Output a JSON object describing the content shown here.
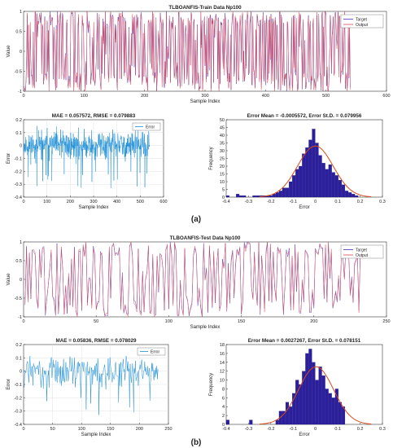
{
  "colors": {
    "target": "#4b2fbf",
    "output": "#e0444a",
    "error": "#1f8fd6",
    "hist_fill": "#2b1f9e",
    "fit": "#d94a1a"
  },
  "panels": [
    {
      "caption": "(a)",
      "top": {
        "title": "TLBOANFIS-Train Data Np100",
        "xlabel": "Sample Index",
        "ylabel": "Value",
        "legend": [
          "Target",
          "Output"
        ],
        "xlim": [
          0,
          600
        ],
        "ylim": [
          -1,
          1
        ],
        "xticks": [
          "0",
          "100",
          "200",
          "300",
          "400",
          "500",
          "600"
        ],
        "yticks": [
          "-1",
          "-0.5",
          "0",
          "0.5",
          "1"
        ],
        "n": 540,
        "seed": 7
      },
      "error": {
        "title": "MAE = 0.057572, RMSE = 0.079883",
        "xlabel": "Sample Index",
        "ylabel": "Error",
        "legend": [
          "Error"
        ],
        "xlim": [
          0,
          600
        ],
        "ylim": [
          -0.4,
          0.2
        ],
        "xticks": [
          "0",
          "100",
          "200",
          "300",
          "400",
          "500",
          "600"
        ],
        "yticks": [
          "-0.4",
          "-0.3",
          "-0.2",
          "-0.1",
          "0",
          "0.1",
          "0.2"
        ],
        "n": 540,
        "seed": 11
      },
      "hist": {
        "title": "Error Mean = -0.0005572, Error St.D. = 0.079956",
        "xlabel": "Error",
        "ylabel": "Frequency",
        "xlim": [
          -0.4,
          0.3
        ],
        "ylim": [
          0,
          50
        ],
        "xticks": [
          "-0.4",
          "-0.3",
          "-0.2",
          "-0.1",
          "0",
          "0.1",
          "0.2",
          "0.3"
        ],
        "yticks": [
          "0",
          "5",
          "10",
          "15",
          "20",
          "25",
          "30",
          "35",
          "40",
          "45",
          "50"
        ],
        "bin_start": -0.4,
        "bin_width": 0.0148,
        "counts": [
          1,
          0,
          0,
          2,
          1,
          1,
          0,
          0,
          1,
          1,
          1,
          1,
          1,
          1,
          2,
          3,
          4,
          6,
          6,
          10,
          14,
          18,
          20,
          28,
          32,
          37,
          44,
          35,
          27,
          22,
          18,
          21,
          16,
          14,
          11,
          8,
          4,
          3,
          2,
          1
        ],
        "fit": {
          "mean": -0.0005572,
          "std": 0.079956,
          "peak": 33
        }
      }
    },
    {
      "caption": "(b)",
      "top": {
        "title": "TLBOANFIS-Test Data Np100",
        "xlabel": "Sample Index",
        "ylabel": "Value",
        "legend": [
          "Target",
          "Output"
        ],
        "xlim": [
          0,
          250
        ],
        "ylim": [
          -1,
          1
        ],
        "xticks": [
          "0",
          "50",
          "100",
          "150",
          "200",
          "250"
        ],
        "yticks": [
          "-1",
          "-0.5",
          "0",
          "0.5",
          "1"
        ],
        "n": 232,
        "seed": 23
      },
      "error": {
        "title": "MAE = 0.05836, RMSE = 0.078029",
        "xlabel": "Sample Index",
        "ylabel": "Error",
        "legend": [
          "Error"
        ],
        "xlim": [
          0,
          250
        ],
        "ylim": [
          -0.4,
          0.2
        ],
        "xticks": [
          "0",
          "50",
          "100",
          "150",
          "200",
          "250"
        ],
        "yticks": [
          "-0.4",
          "-0.3",
          "-0.2",
          "-0.1",
          "0",
          "0.1",
          "0.2"
        ],
        "n": 232,
        "seed": 31
      },
      "hist": {
        "title": "Error Mean = 0.0027267, Error St.D. = 0.078151",
        "xlabel": "Error",
        "ylabel": "Frequency",
        "xlim": [
          -0.4,
          0.3
        ],
        "ylim": [
          0,
          18
        ],
        "xticks": [
          "-0.4",
          "-0.3",
          "-0.2",
          "-0.1",
          "0",
          "0.1",
          "0.2",
          "0.3"
        ],
        "yticks": [
          "0",
          "2",
          "4",
          "6",
          "8",
          "10",
          "12",
          "14",
          "16",
          "18"
        ],
        "bin_start": -0.4,
        "bin_width": 0.0148,
        "counts": [
          1,
          0,
          0,
          0,
          0,
          0,
          0,
          1,
          0,
          0,
          0,
          0,
          0,
          0,
          0,
          1,
          3,
          3,
          5,
          4,
          7,
          10,
          9,
          12,
          16,
          17,
          14,
          10,
          13,
          11,
          8,
          7,
          6,
          8,
          5,
          4,
          0,
          0,
          0,
          0
        ],
        "fit": {
          "mean": 0.0027267,
          "std": 0.078151,
          "peak": 13
        }
      }
    }
  ]
}
